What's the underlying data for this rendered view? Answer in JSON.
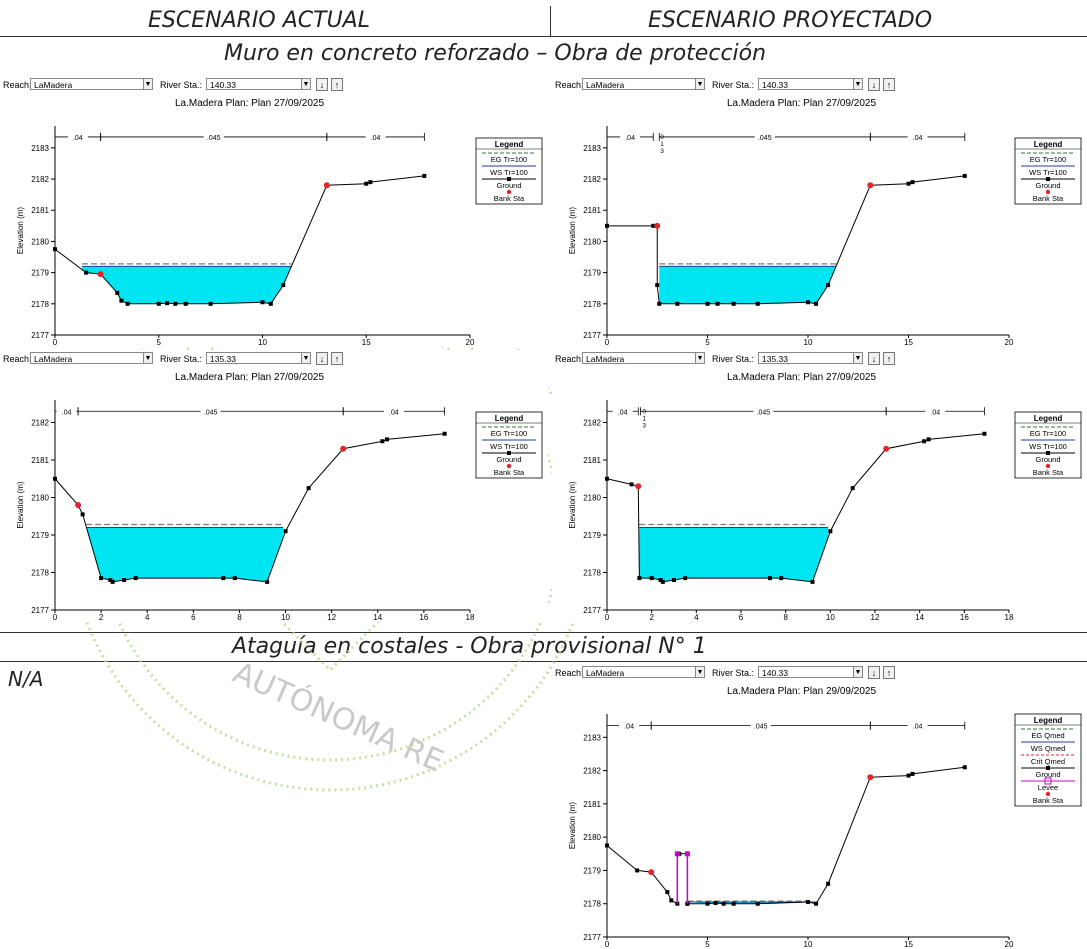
{
  "headers": {
    "left": "ESCENARIO ACTUAL",
    "right": "ESCENARIO PROYECTADO",
    "section1": "Muro en concreto reforzado – Obra de protección",
    "section2": "Ataguía en costales - Obra provisional N° 1",
    "na": "N/A"
  },
  "watermark": "AUTÓNOMA RE",
  "colors": {
    "water": "#00e5f2",
    "eg": "#2f7d2f",
    "ws": "#1f3f9a",
    "ground": "#000000",
    "bank": "#e3262b",
    "levee": "#d000d0"
  },
  "panels": [
    {
      "toolbar": {
        "reach_label": "Reach:",
        "reach": "LaMadera",
        "station_label": "River Sta.:",
        "station": "140.33"
      },
      "title": "La.Madera        Plan: Plan    27/09/2025",
      "ylabel": "Elevation (m)",
      "chart_data": {
        "type": "line",
        "xlim": [
          0,
          20
        ],
        "ylim": [
          2177,
          2183.7
        ],
        "xticks": [
          0,
          5,
          10,
          15,
          20
        ],
        "yticks": [
          2177,
          2178,
          2179,
          2180,
          2181,
          2182,
          2183
        ],
        "x": [
          0,
          1.5,
          2.2,
          3.0,
          3.2,
          3.5,
          5.0,
          5.4,
          5.8,
          6.3,
          7.5,
          10.0,
          10.4,
          11.0,
          13.1,
          15.0,
          15.2,
          17.8
        ],
        "y": [
          2179.75,
          2179.0,
          2178.95,
          2178.35,
          2178.1,
          2178.0,
          2178.0,
          2178.02,
          2178.0,
          2178.0,
          2178.0,
          2178.05,
          2178.0,
          2178.6,
          2181.8,
          2181.85,
          2181.9,
          2182.1
        ],
        "bank": [
          [
            2.2,
            2178.95
          ],
          [
            13.1,
            2181.8
          ]
        ],
        "wse": 2179.2,
        "eg": 2179.28,
        "water_from": 1.3,
        "water_to": 11.4,
        "n_segments": [
          {
            "x1": 0,
            "x2": 2.2,
            "label": ".04"
          },
          {
            "x1": 2.2,
            "x2": 13.1,
            "label": ".045"
          },
          {
            "x1": 13.1,
            "x2": 17.8,
            "label": ".04"
          }
        ],
        "n_y": 2183.35,
        "legend": [
          "EG Tr=100",
          "WS Tr=100",
          "Ground",
          "Bank Sta"
        ]
      }
    },
    {
      "toolbar": {
        "reach_label": "Reach:",
        "reach": "LaMadera",
        "station_label": "River Sta.:",
        "station": "140.33"
      },
      "title": "La.Madera        Plan: Plan    27/09/2025",
      "ylabel": "Elevation (m)",
      "chart_data": {
        "type": "line",
        "xlim": [
          0,
          20
        ],
        "ylim": [
          2177,
          2183.7
        ],
        "xticks": [
          0,
          5,
          10,
          15,
          20
        ],
        "yticks": [
          2177,
          2178,
          2179,
          2180,
          2181,
          2182,
          2183
        ],
        "x": [
          0,
          2.3,
          2.5,
          2.5,
          2.6,
          3.5,
          5.0,
          5.5,
          6.3,
          7.5,
          10.0,
          10.4,
          11.0,
          13.1,
          15.0,
          15.2,
          17.8
        ],
        "y": [
          2180.5,
          2180.5,
          2180.5,
          2178.6,
          2178.0,
          2178.0,
          2178.0,
          2178.0,
          2178.0,
          2178.0,
          2178.05,
          2178.0,
          2178.6,
          2181.8,
          2181.85,
          2181.9,
          2182.1
        ],
        "bank": [
          [
            2.5,
            2180.5
          ],
          [
            13.1,
            2181.8
          ]
        ],
        "wse": 2179.2,
        "eg": 2179.28,
        "water_from": 2.6,
        "water_to": 11.4,
        "n_segments": [
          {
            "x1": 0,
            "x2": 2.3,
            "label": ".04"
          },
          {
            "x1": 2.6,
            "x2": 13.1,
            "label": ".045"
          },
          {
            "x1": 13.1,
            "x2": 17.8,
            "label": ".04"
          }
        ],
        "n_y": 2183.35,
        "n_mini": {
          "x": 2.5,
          "label": "0\n1\n3"
        },
        "legend": [
          "EG Tr=100",
          "WS Tr=100",
          "Ground",
          "Bank Sta"
        ]
      }
    },
    {
      "toolbar": {
        "reach_label": "Reach:",
        "reach": "LaMadera",
        "station_label": "River Sta.:",
        "station": "135.33"
      },
      "title": "La.Madera        Plan: Plan    27/09/2025",
      "ylabel": "Elevation (m)",
      "chart_data": {
        "type": "line",
        "xlim": [
          0,
          18
        ],
        "ylim": [
          2177,
          2182.6
        ],
        "xticks": [
          0,
          2,
          4,
          6,
          8,
          10,
          12,
          14,
          16,
          18
        ],
        "yticks": [
          2177,
          2178,
          2179,
          2180,
          2181,
          2182
        ],
        "x": [
          0,
          1.0,
          1.2,
          2.0,
          2.4,
          2.5,
          3.0,
          3.5,
          7.3,
          7.8,
          9.2,
          10.0,
          11.0,
          12.5,
          14.2,
          14.4,
          16.9
        ],
        "y": [
          2180.5,
          2179.8,
          2179.55,
          2177.85,
          2177.8,
          2177.75,
          2177.8,
          2177.85,
          2177.85,
          2177.85,
          2177.75,
          2179.1,
          2180.25,
          2181.3,
          2181.5,
          2181.55,
          2181.7
        ],
        "bank": [
          [
            1.0,
            2179.8
          ],
          [
            12.5,
            2181.3
          ]
        ],
        "wse": 2179.2,
        "eg": 2179.28,
        "water_from": 1.35,
        "water_to": 9.9,
        "n_segments": [
          {
            "x1": 0,
            "x2": 1.0,
            "label": ".04"
          },
          {
            "x1": 1.0,
            "x2": 12.5,
            "label": ".045"
          },
          {
            "x1": 12.5,
            "x2": 16.9,
            "label": ".04"
          }
        ],
        "n_y": 2182.3,
        "legend": [
          "EG Tr=100",
          "WS Tr=100",
          "Ground",
          "Bank Sta"
        ]
      }
    },
    {
      "toolbar": {
        "reach_label": "Reach:",
        "reach": "LaMadera",
        "station_label": "River Sta.:",
        "station": "135.33"
      },
      "title": "La.Madera        Plan: Plan    27/09/2025",
      "ylabel": "Elevation (m)",
      "chart_data": {
        "type": "line",
        "xlim": [
          0,
          18
        ],
        "ylim": [
          2177,
          2182.6
        ],
        "xticks": [
          0,
          2,
          4,
          6,
          8,
          10,
          12,
          14,
          16,
          18
        ],
        "yticks": [
          2177,
          2178,
          2179,
          2180,
          2181,
          2182
        ],
        "x": [
          0,
          1.1,
          1.4,
          1.45,
          2.0,
          2.4,
          2.5,
          3.0,
          3.5,
          7.3,
          7.8,
          9.2,
          10.0,
          11.0,
          12.5,
          14.2,
          14.4,
          16.9
        ],
        "y": [
          2180.5,
          2180.35,
          2180.3,
          2177.85,
          2177.85,
          2177.8,
          2177.75,
          2177.8,
          2177.85,
          2177.85,
          2177.85,
          2177.75,
          2179.1,
          2180.25,
          2181.3,
          2181.5,
          2181.55,
          2181.7
        ],
        "bank": [
          [
            1.4,
            2180.3
          ],
          [
            12.5,
            2181.3
          ]
        ],
        "wse": 2179.2,
        "eg": 2179.28,
        "water_from": 1.45,
        "water_to": 9.9,
        "n_segments": [
          {
            "x1": 0,
            "x2": 1.4,
            "label": ".04"
          },
          {
            "x1": 1.5,
            "x2": 12.5,
            "label": ".045"
          },
          {
            "x1": 12.5,
            "x2": 16.9,
            "label": ".04"
          }
        ],
        "n_y": 2182.3,
        "n_mini": {
          "x": 1.45,
          "label": "0\n1\n3"
        },
        "legend": [
          "EG Tr=100",
          "WS Tr=100",
          "Ground",
          "Bank Sta"
        ]
      }
    },
    {
      "toolbar": {
        "reach_label": "Reach:",
        "reach": "LaMadera",
        "station_label": "River Sta.:",
        "station": "140.33"
      },
      "title": "La.Madera        Plan: Plan    29/09/2025",
      "ylabel": "Elevation (m)",
      "chart_data": {
        "type": "line",
        "xlim": [
          0,
          20
        ],
        "ylim": [
          2177,
          2183.7
        ],
        "xticks": [
          0,
          5,
          10,
          15,
          20
        ],
        "yticks": [
          2177,
          2178,
          2179,
          2180,
          2181,
          2182,
          2183
        ],
        "x": [
          0,
          1.5,
          2.2,
          3.0,
          3.2,
          3.5,
          3.5,
          3.5,
          3.6,
          4.0,
          4.0,
          4.0,
          5.0,
          5.4,
          5.8,
          6.3,
          7.5,
          10.0,
          10.4,
          11.0,
          13.1,
          15.0,
          15.2,
          17.8
        ],
        "y": [
          2179.75,
          2179.0,
          2178.95,
          2178.35,
          2178.1,
          2178.0,
          2179.5,
          2179.5,
          2179.5,
          2179.5,
          2178.0,
          2178.0,
          2178.0,
          2178.02,
          2178.0,
          2178.0,
          2178.0,
          2178.05,
          2178.0,
          2178.6,
          2181.8,
          2181.85,
          2181.9,
          2182.1
        ],
        "bank": [
          [
            2.2,
            2178.95
          ],
          [
            13.1,
            2181.8
          ]
        ],
        "levee": [
          [
            3.5,
            2179.5
          ],
          [
            4.0,
            2179.5
          ]
        ],
        "wse": 2178.05,
        "eg": 2178.08,
        "water_from": 4.0,
        "water_to": 10.3,
        "n_segments": [
          {
            "x1": 0,
            "x2": 2.2,
            "label": ".04"
          },
          {
            "x1": 2.2,
            "x2": 13.1,
            "label": ".045"
          },
          {
            "x1": 13.1,
            "x2": 17.8,
            "label": ".04"
          }
        ],
        "n_y": 2183.35,
        "legend": [
          "EG Qmed",
          "WS Qmed",
          "Crit Qmed",
          "Ground",
          "Levee",
          "Bank Sta"
        ]
      }
    }
  ]
}
